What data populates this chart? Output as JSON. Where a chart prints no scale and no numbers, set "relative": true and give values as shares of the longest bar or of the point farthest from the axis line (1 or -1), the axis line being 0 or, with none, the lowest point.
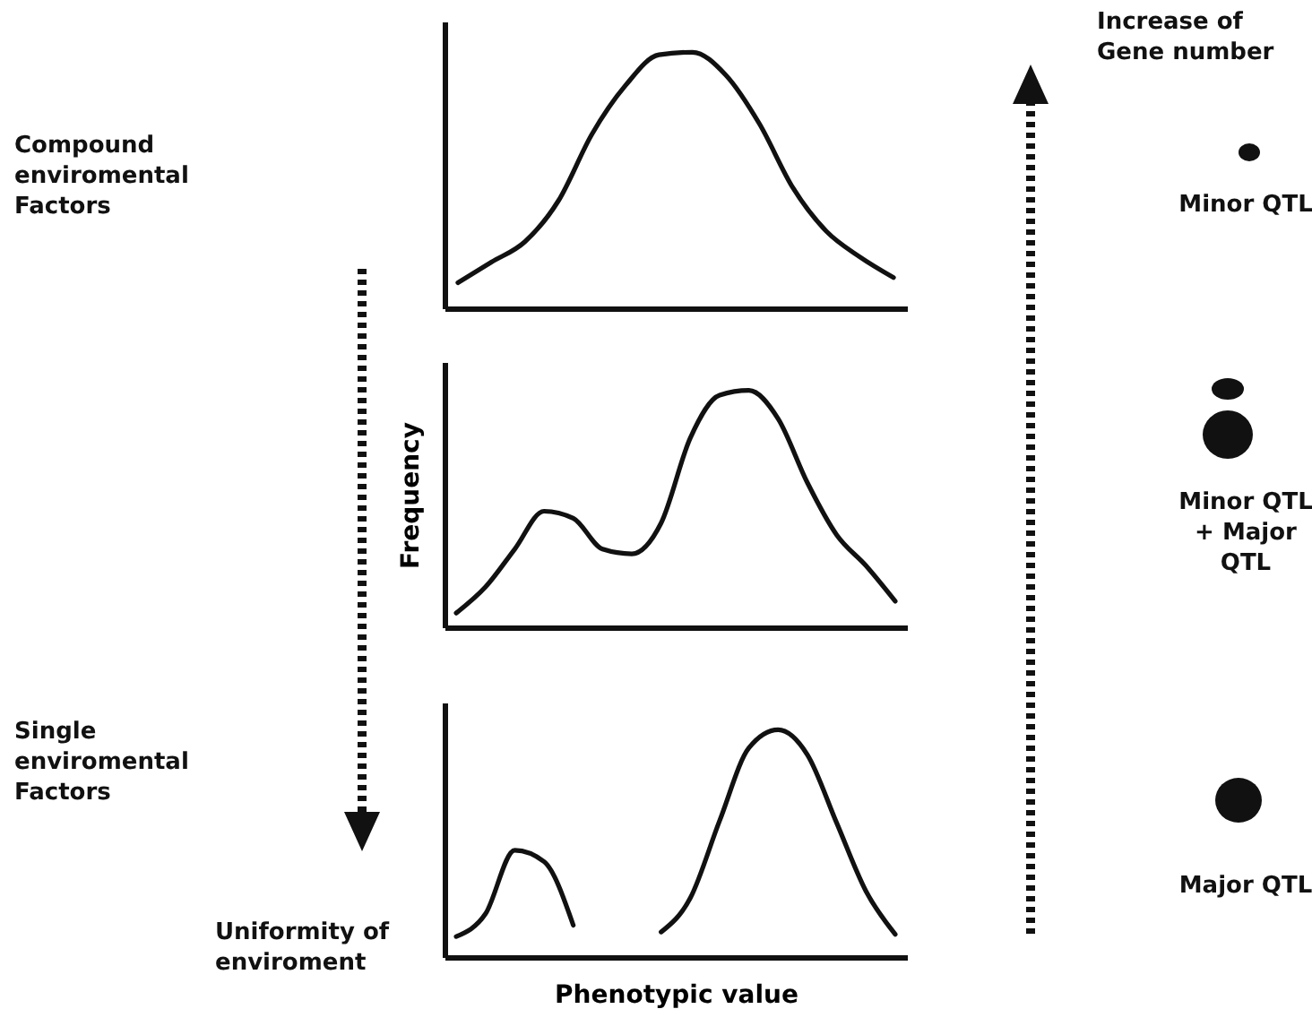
{
  "chart_data": [
    {
      "type": "line",
      "relative": true,
      "tick_labels": false,
      "categories": [
        null,
        null,
        null,
        null,
        null,
        null,
        null,
        null,
        null,
        null,
        null,
        null,
        null,
        null
      ],
      "series": [
        {
          "color": "#111111",
          "values": [
            0.1,
            0.18,
            0.26,
            0.42,
            0.68,
            0.87,
            0.99,
            1.0,
            0.91,
            0.72,
            0.47,
            0.3,
            0.2,
            0.12
          ]
        }
      ],
      "annotations": [
        "Compound enviromental Factors",
        "Increase of Gene number",
        "Minor QTL"
      ]
    },
    {
      "type": "line",
      "relative": true,
      "tick_labels": false,
      "ylabel": "Frequency",
      "categories": [
        null,
        null,
        null,
        null,
        null,
        null,
        null,
        null,
        null,
        null,
        null,
        null,
        null,
        null,
        null,
        null
      ],
      "series": [
        {
          "color": "#111111",
          "values": [
            0.06,
            0.17,
            0.33,
            0.49,
            0.46,
            0.33,
            0.31,
            0.44,
            0.8,
            0.98,
            1.0,
            0.88,
            0.61,
            0.39,
            0.26,
            0.11
          ]
        }
      ],
      "annotations": [
        "Minor QTL + Major QTL"
      ]
    },
    {
      "type": "line",
      "relative": true,
      "tick_labels": false,
      "xlabel": "Phenotypic value",
      "categories": [
        null,
        null,
        null,
        null,
        null,
        null,
        null,
        null,
        null,
        null,
        null,
        null,
        null,
        null,
        null,
        null
      ],
      "series": [
        {
          "color": "#111111",
          "values": [
            0.09,
            0.19,
            0.47,
            0.42,
            0.14,
            null,
            null,
            0.11,
            0.26,
            0.6,
            0.92,
            1.0,
            0.89,
            0.59,
            0.29,
            0.1
          ]
        }
      ],
      "annotations": [
        "Single enviromental Factors",
        "Uniformity of enviroment",
        "Major QTL"
      ]
    }
  ]
}
